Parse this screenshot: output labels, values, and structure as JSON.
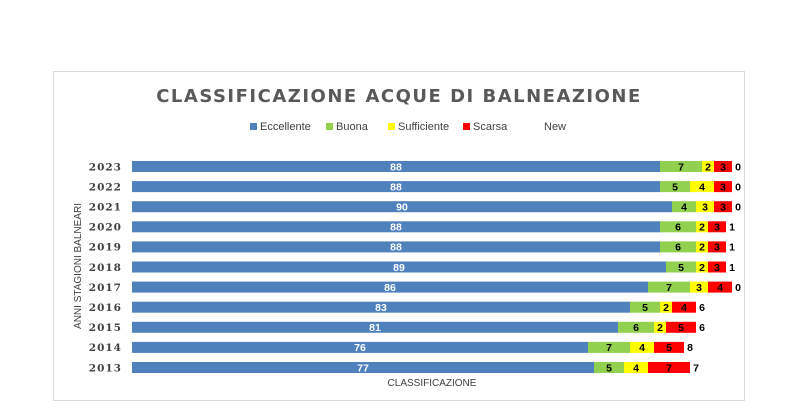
{
  "chart_data": {
    "type": "bar",
    "orientation": "horizontal",
    "stacked": true,
    "title": "CLASSIFICAZIONE ACQUE DI BALNEAZIONE",
    "xlabel": "CLASSIFICAZIONE",
    "ylabel": "ANNI STAGIONI BALNEARI",
    "categories": [
      "2023",
      "2022",
      "2021",
      "2020",
      "2019",
      "2018",
      "2017",
      "2016",
      "2015",
      "2014",
      "2013"
    ],
    "series": [
      {
        "name": "Eccellente",
        "color": "#4f81bd",
        "values": [
          88,
          88,
          90,
          88,
          88,
          89,
          86,
          83,
          81,
          76,
          77
        ]
      },
      {
        "name": "Buona",
        "color": "#92d050",
        "values": [
          7,
          5,
          4,
          6,
          6,
          5,
          7,
          5,
          6,
          7,
          5
        ]
      },
      {
        "name": "Sufficiente",
        "color": "#ffff00",
        "values": [
          2,
          4,
          3,
          2,
          2,
          2,
          3,
          2,
          2,
          4,
          4
        ]
      },
      {
        "name": "Scarsa",
        "color": "#ff0000",
        "values": [
          3,
          3,
          3,
          3,
          3,
          3,
          4,
          4,
          5,
          5,
          7
        ]
      },
      {
        "name": "New",
        "color": "#ffffff",
        "values": [
          0,
          0,
          0,
          1,
          1,
          1,
          0,
          6,
          6,
          8,
          7
        ]
      }
    ],
    "legend_position": "top",
    "grid": false
  }
}
